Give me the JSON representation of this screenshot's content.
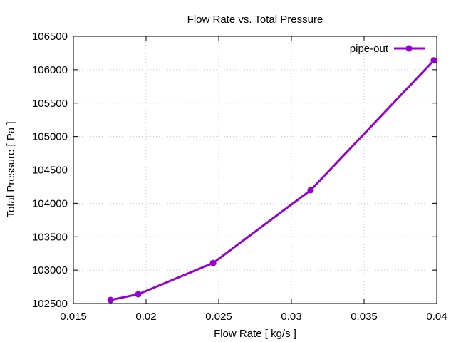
{
  "chart_data": {
    "type": "line",
    "title": "Flow Rate vs. Total Pressure",
    "xlabel": "Flow Rate [ kg/s ]",
    "ylabel": "Total Pressure [ Pa ]",
    "xlim": [
      0.015,
      0.04
    ],
    "ylim": [
      102500,
      106500
    ],
    "xticks": [
      0.015,
      0.02,
      0.025,
      0.03,
      0.035,
      0.04
    ],
    "xtick_labels": [
      "0.015",
      "0.02",
      "0.025",
      "0.03",
      "0.035",
      "0.04"
    ],
    "yticks": [
      102500,
      103000,
      103500,
      104000,
      104500,
      105000,
      105500,
      106000,
      106500
    ],
    "ytick_labels": [
      "102500",
      "103000",
      "103500",
      "104000",
      "104500",
      "105000",
      "105500",
      "106000",
      "106500"
    ],
    "grid": true,
    "legend_position": "top-right",
    "series": [
      {
        "name": "pipe-out",
        "color": "#9400d3",
        "x": [
          0.01756,
          0.01946,
          0.02461,
          0.03132,
          0.0398
        ],
        "y": [
          102553,
          102639,
          103106,
          104196,
          106140
        ]
      }
    ]
  }
}
